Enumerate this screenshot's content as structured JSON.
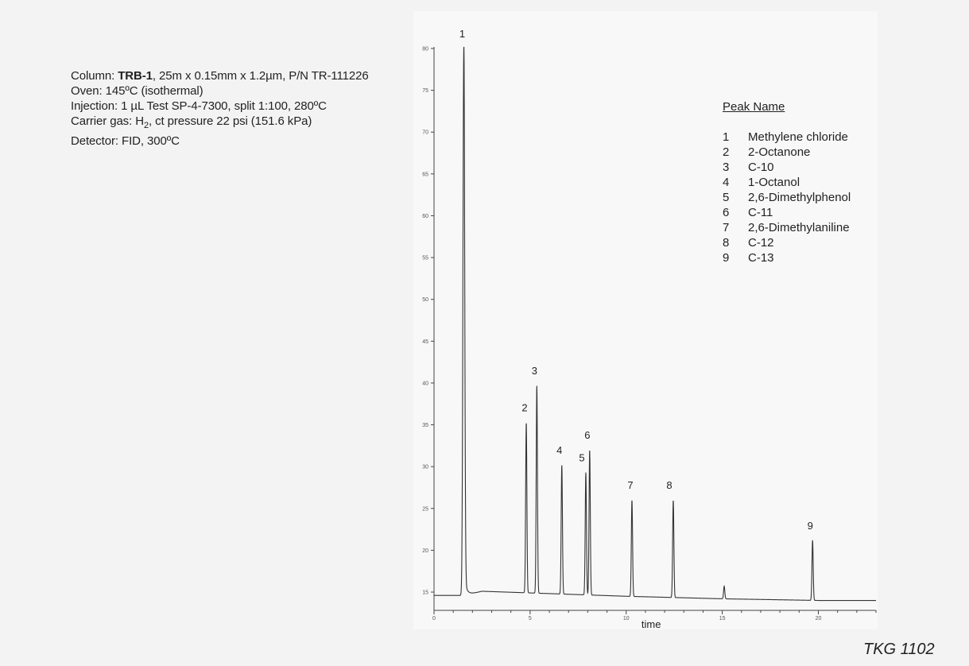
{
  "conditions": {
    "column_prefix": "Column: ",
    "column_name": "TRB-1",
    "column_rest": ", 25m x 0.15mm x 1.2µm, P/N TR-111226",
    "oven": "Oven: 145ºC (isothermal)",
    "injection": "Injection: 1 µL Test SP-4-7300, split 1:100, 280ºC",
    "carrier_prefix": "Carrier gas: H",
    "carrier_sub": "2",
    "carrier_rest": ", ct pressure 22 psi (151.6 kPa)",
    "detector": "Detector: FID, 300ºC"
  },
  "legend": {
    "heading": "Peak Name",
    "items": [
      {
        "num": "1",
        "name": "Methylene chloride"
      },
      {
        "num": "2",
        "name": "2-Octanone"
      },
      {
        "num": "3",
        "name": "C-10"
      },
      {
        "num": "4",
        "name": "1-Octanol"
      },
      {
        "num": "5",
        "name": "2,6-Dimethylphenol"
      },
      {
        "num": "6",
        "name": "C-11"
      },
      {
        "num": "7",
        "name": "2,6-Dimethylaniline"
      },
      {
        "num": "8",
        "name": "C-12"
      },
      {
        "num": "9",
        "name": "C-13"
      }
    ]
  },
  "footer": "TKG 1102",
  "chart_data": {
    "type": "line",
    "xlabel": "time",
    "ylabel": "",
    "xlim": [
      0,
      23
    ],
    "ylim": [
      13,
      80
    ],
    "x_ticks": [
      "0",
      "5",
      "10",
      "15",
      "20"
    ],
    "y_ticks": [
      "15",
      "20",
      "25",
      "30",
      "35",
      "40",
      "45",
      "50",
      "55",
      "60",
      "65",
      "70",
      "75",
      "80"
    ],
    "baseline": [
      [
        0,
        14.6
      ],
      [
        1.55,
        14.6
      ],
      [
        2.5,
        15.1
      ],
      [
        5,
        14.9
      ],
      [
        10,
        14.5
      ],
      [
        15,
        14.2
      ],
      [
        20,
        14.0
      ],
      [
        23,
        14.0
      ]
    ],
    "peaks": [
      {
        "label": "1",
        "time": 1.55,
        "height": 80.0
      },
      {
        "label": "2",
        "time": 4.8,
        "height": 35.3
      },
      {
        "label": "3",
        "time": 5.35,
        "height": 39.7
      },
      {
        "label": "4",
        "time": 6.65,
        "height": 30.2
      },
      {
        "label": "5",
        "time": 7.9,
        "height": 29.3
      },
      {
        "label": "6",
        "time": 8.1,
        "height": 32.0
      },
      {
        "label": "7",
        "time": 10.3,
        "height": 26.0
      },
      {
        "label": "8",
        "time": 12.45,
        "height": 26.0
      },
      {
        "label": "9",
        "time": 19.7,
        "height": 21.2
      }
    ],
    "minor_peaks": [
      {
        "time": 15.1,
        "height": 15.7
      }
    ],
    "grid": false
  }
}
